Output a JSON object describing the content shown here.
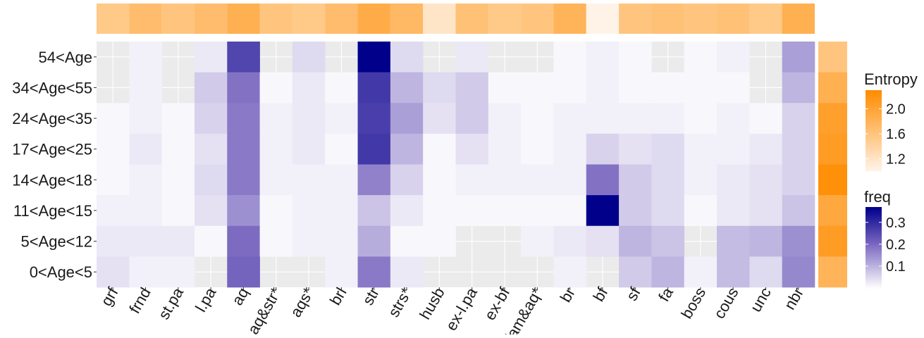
{
  "chart_data": {
    "type": "heatmap",
    "x_categories": [
      "grf",
      "frnd",
      "st.pa",
      "l.pa",
      "aq",
      "aq&str*",
      "aqs*",
      "brl",
      "str",
      "strs*",
      "husb",
      "ex-l.pa",
      "ex-bf",
      "fam&aq*",
      "br",
      "bf",
      "sf",
      "fa",
      "boss",
      "cous",
      "unc",
      "nbr"
    ],
    "y_categories": [
      "54<Age",
      "34<Age<55",
      "24<Age<35",
      "17<Age<25",
      "14<Age<18",
      "11<Age<15",
      "5<Age<12",
      "0<Age<5"
    ],
    "freq": [
      [
        null,
        0.02,
        null,
        0.03,
        0.26,
        null,
        0.05,
        null,
        0.37,
        0.05,
        null,
        0.03,
        null,
        null,
        0.01,
        0.02,
        0.01,
        null,
        0.01,
        0.02,
        null,
        0.13
      ],
      [
        null,
        0.02,
        null,
        0.07,
        0.19,
        0.01,
        0.03,
        0.01,
        0.28,
        0.1,
        0.05,
        0.07,
        0.01,
        0.01,
        0.01,
        0.02,
        0.01,
        0.01,
        0.01,
        0.01,
        null,
        0.1
      ],
      [
        0.01,
        0.02,
        0.01,
        0.06,
        0.18,
        0.02,
        0.03,
        0.02,
        0.27,
        0.13,
        0.04,
        0.07,
        0.02,
        0.01,
        0.02,
        0.02,
        0.02,
        0.02,
        0.01,
        0.02,
        0.01,
        0.06
      ],
      [
        0.01,
        0.03,
        0.01,
        0.04,
        0.18,
        0.02,
        0.03,
        0.01,
        0.28,
        0.1,
        0.01,
        0.04,
        0.02,
        0.01,
        0.02,
        0.06,
        0.04,
        0.05,
        0.02,
        0.02,
        0.03,
        0.06
      ],
      [
        0.01,
        0.02,
        0.01,
        0.05,
        0.18,
        0.02,
        0.02,
        0.02,
        0.17,
        0.06,
        0.01,
        0.02,
        0.02,
        0.02,
        0.02,
        0.19,
        0.07,
        0.05,
        0.02,
        0.03,
        0.04,
        0.06
      ],
      [
        0.02,
        0.02,
        0.01,
        0.04,
        0.15,
        0.01,
        0.02,
        0.02,
        0.08,
        0.03,
        0.01,
        0.01,
        0.01,
        0.01,
        0.01,
        0.37,
        0.07,
        0.05,
        0.01,
        0.03,
        0.04,
        0.08
      ],
      [
        0.03,
        0.03,
        0.03,
        0.01,
        0.2,
        0.01,
        0.02,
        0.02,
        0.11,
        0.01,
        0.01,
        null,
        null,
        0.02,
        0.03,
        0.04,
        0.1,
        0.08,
        null,
        0.09,
        0.1,
        0.15
      ],
      [
        0.04,
        0.02,
        0.02,
        null,
        0.21,
        null,
        null,
        0.02,
        0.18,
        0.03,
        null,
        null,
        null,
        null,
        0.02,
        null,
        0.07,
        0.1,
        0.02,
        0.09,
        0.05,
        0.16
      ]
    ],
    "entropy_top": [
      1.55,
      1.7,
      1.6,
      1.7,
      1.85,
      1.6,
      1.55,
      1.7,
      1.9,
      1.75,
      1.2,
      1.65,
      1.55,
      1.6,
      1.8,
      1.02,
      1.6,
      1.65,
      1.6,
      1.65,
      1.55,
      1.85
    ],
    "entropy_right": [
      1.6,
      1.85,
      2.05,
      2.1,
      2.25,
      1.95,
      2.1,
      1.8
    ],
    "legend_entropy": {
      "title": "Entropy",
      "ticks": [
        1.2,
        1.6,
        2.0
      ],
      "tick_labels": [
        "1.2",
        "1.6",
        "2.0"
      ],
      "range": [
        1.0,
        2.3
      ],
      "color_low": "#fff5eb",
      "color_high": "#ff8c00"
    },
    "legend_freq": {
      "title": "freq",
      "ticks": [
        0.1,
        0.2,
        0.3
      ],
      "tick_labels": [
        "0.1",
        "0.2",
        "0.3"
      ],
      "range": [
        0.0,
        0.37
      ],
      "color_low": "#ffffff",
      "color_high": "#00008b"
    },
    "grid": true,
    "legend_position": "right"
  },
  "colors": {
    "panel_background": "#ebebeb",
    "gridline": "#ffffff",
    "tick_text": "#1a1a1a"
  }
}
